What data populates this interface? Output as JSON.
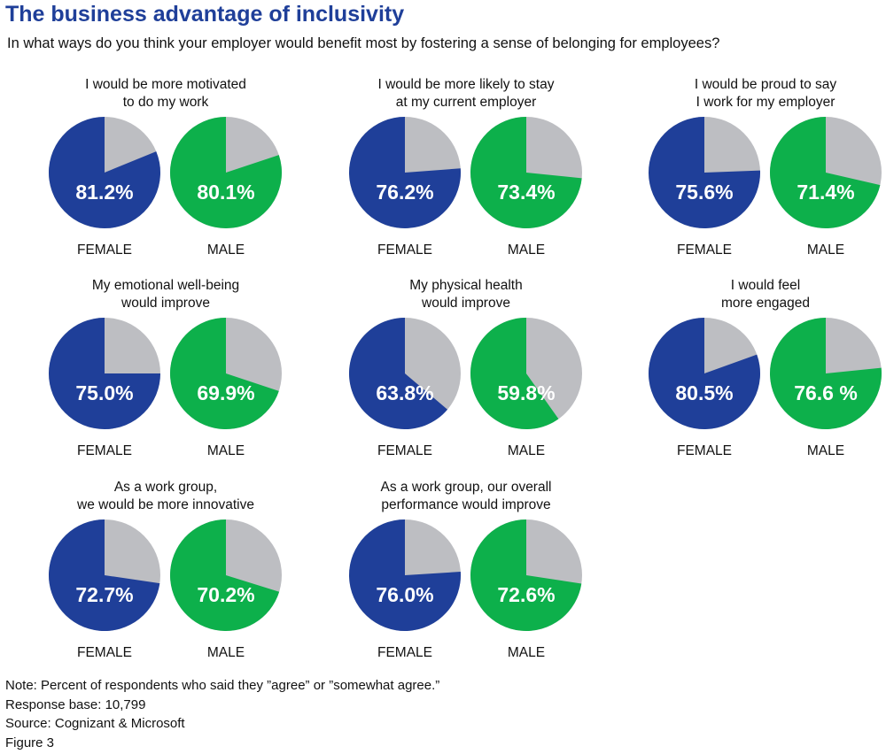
{
  "title": "The business advantage of inclusivity",
  "subtitle": "In what ways do you think your employer would benefit most by fostering a sense of belonging for employees?",
  "colors": {
    "female": "#1f3f99",
    "male": "#0db04b",
    "remainder": "#bdbec2"
  },
  "chart_data": {
    "type": "pie",
    "charts": [
      {
        "title_lines": [
          "I would be more motivated",
          "to do my work"
        ],
        "female": {
          "label": "FEMALE",
          "value": 81.2,
          "text": "81.2%"
        },
        "male": {
          "label": "MALE",
          "value": 80.1,
          "text": "80.1%"
        }
      },
      {
        "title_lines": [
          "I would be more likely to stay",
          "at my current employer"
        ],
        "female": {
          "label": "FEMALE",
          "value": 76.2,
          "text": "76.2%"
        },
        "male": {
          "label": "MALE",
          "value": 73.4,
          "text": "73.4%"
        }
      },
      {
        "title_lines": [
          "I would be proud to say",
          "I work for my employer"
        ],
        "female": {
          "label": "FEMALE",
          "value": 75.6,
          "text": "75.6%"
        },
        "male": {
          "label": "MALE",
          "value": 71.4,
          "text": "71.4%"
        }
      },
      {
        "title_lines": [
          "My emotional well-being",
          "would improve"
        ],
        "female": {
          "label": "FEMALE",
          "value": 75.0,
          "text": "75.0%"
        },
        "male": {
          "label": "MALE",
          "value": 69.9,
          "text": "69.9%"
        }
      },
      {
        "title_lines": [
          "My physical health",
          "would improve"
        ],
        "female": {
          "label": "FEMALE",
          "value": 63.8,
          "text": "63.8%"
        },
        "male": {
          "label": "MALE",
          "value": 59.8,
          "text": "59.8%"
        }
      },
      {
        "title_lines": [
          "I would feel",
          "more engaged"
        ],
        "female": {
          "label": "FEMALE",
          "value": 80.5,
          "text": "80.5%"
        },
        "male": {
          "label": "MALE",
          "value": 76.6,
          "text": "76.6 %"
        }
      },
      {
        "title_lines": [
          "As a work group,",
          "we would be more innovative"
        ],
        "female": {
          "label": "FEMALE",
          "value": 72.7,
          "text": "72.7%"
        },
        "male": {
          "label": "MALE",
          "value": 70.2,
          "text": "70.2%"
        }
      },
      {
        "title_lines": [
          "As a work group, our overall",
          "performance would improve"
        ],
        "female": {
          "label": "FEMALE",
          "value": 76.0,
          "text": "76.0%"
        },
        "male": {
          "label": "MALE",
          "value": 72.6,
          "text": "72.6%"
        }
      }
    ]
  },
  "notes": {
    "note": "Note: Percent of respondents who said they ”agree” or ”somewhat agree.”",
    "base": "Response base: 10,799",
    "source": "Source: Cognizant & Microsoft",
    "figure": "Figure 3"
  }
}
